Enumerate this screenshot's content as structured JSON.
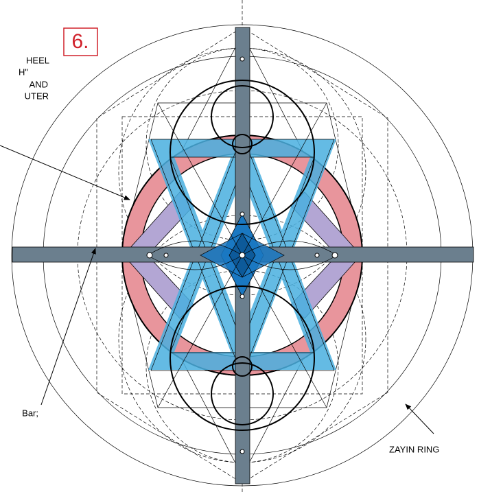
{
  "badge": "6.",
  "labels": {
    "top": [
      "HEEL",
      "H\"",
      "AND",
      "UTER"
    ],
    "bar": "Bar;",
    "ring": "ZAYIN RING"
  }
}
